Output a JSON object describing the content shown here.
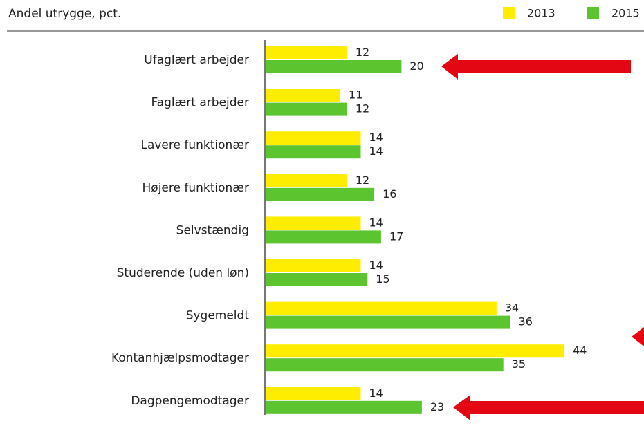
{
  "chart_data": {
    "type": "bar",
    "orientation": "horizontal",
    "title": "Andel utrygge, pct.",
    "categories": [
      "Ufaglært arbejder",
      "Faglært arbejder",
      "Lavere funktionær",
      "Højere funktionær",
      "Selvstændig",
      "Studerende (uden løn)",
      "Sygemeldt",
      "Kontanhjælpsmodtager",
      "Dagpengemodtager"
    ],
    "series": [
      {
        "name": "2013",
        "color": "#ffed00",
        "values": [
          12,
          11,
          14,
          12,
          14,
          14,
          34,
          44,
          14
        ]
      },
      {
        "name": "2015",
        "color": "#5cc42e",
        "values": [
          20,
          12,
          14,
          16,
          17,
          15,
          36,
          35,
          23
        ]
      }
    ]
  }
}
